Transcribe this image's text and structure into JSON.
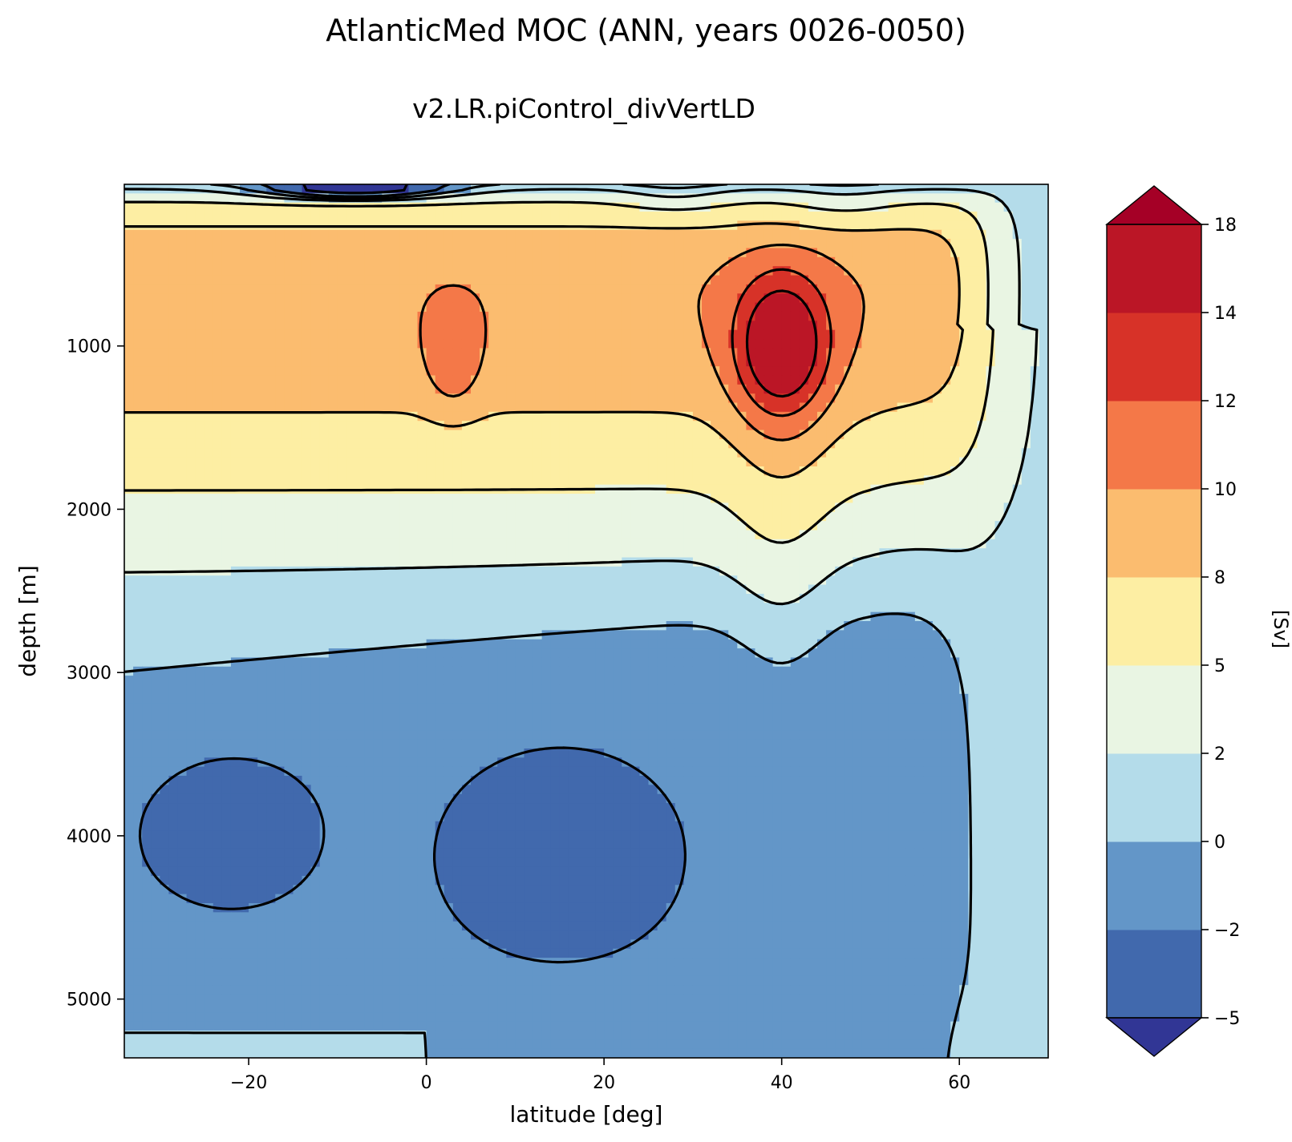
{
  "title": "AtlanticMed MOC (ANN, years 0026-0050)",
  "subtitle": "v2.LR.piControl_divVertLD",
  "chart_data": {
    "type": "contourf",
    "title": "AtlanticMed MOC (ANN, years 0026-0050)",
    "subtitle": "v2.LR.piControl_divVertLD",
    "xlabel": "latitude [deg]",
    "ylabel": "depth [m]",
    "xlim": [
      -34,
      70
    ],
    "ylim": [
      5360,
      10
    ],
    "y_inverted": true,
    "x_ticks": [
      -20,
      0,
      20,
      40,
      60
    ],
    "x_tick_labels": [
      "−20",
      "0",
      "20",
      "40",
      "60"
    ],
    "y_ticks": [
      1000,
      2000,
      3000,
      4000,
      5000
    ],
    "y_tick_labels": [
      "1000",
      "2000",
      "3000",
      "4000",
      "5000"
    ],
    "grid": false,
    "colorbar": {
      "label": "[Sv]",
      "levels": [
        -5,
        -2,
        0,
        2,
        5,
        8,
        10,
        12,
        14,
        18
      ],
      "tick_labels": [
        "−5",
        "−2",
        "0",
        "2",
        "5",
        "8",
        "10",
        "12",
        "14",
        "18"
      ],
      "colors": [
        "#4169ad",
        "#6396c8",
        "#b4dcea",
        "#e9f5e3",
        "#fdeea3",
        "#fbbc6f",
        "#f47848",
        "#d73228",
        "#bb1626"
      ],
      "under_color": "#313695",
      "over_color": "#a50026",
      "extend": "both"
    },
    "contour_line_color": "#000000",
    "features": [
      {
        "kind": "cell",
        "sign": "positive",
        "max_sv": 18,
        "center_lat": 40,
        "center_depth": 950
      },
      {
        "kind": "cell",
        "sign": "negative",
        "min_sv": -5,
        "center_lat": -10,
        "center_depth": 60
      },
      {
        "kind": "cell",
        "sign": "negative",
        "range_sv": [
          -5,
          -2
        ],
        "center_lat": 15,
        "center_depth": 4100
      },
      {
        "kind": "cell",
        "sign": "negative",
        "range_sv": [
          -5,
          -2
        ],
        "center_lat": -22,
        "center_depth": 3950
      }
    ]
  }
}
